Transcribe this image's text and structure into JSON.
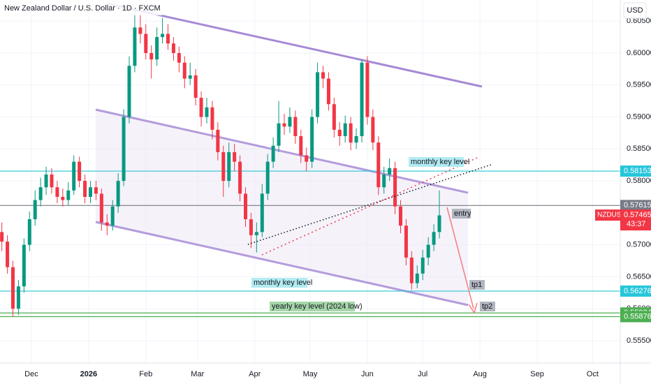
{
  "chart_data": {
    "type": "candlestick",
    "title": "New Zealand Dollar / U.S. Dollar · 1D · FXCM",
    "currency": "USD",
    "symbol": "NZDUSD",
    "countdown": "43:37",
    "up_color": "#089981",
    "down_color": "#f23645",
    "xlim": [
      -17,
      319
    ],
    "ylim": [
      0.5515,
      0.6083
    ],
    "xticks": [
      {
        "value": 0,
        "label": "Dec"
      },
      {
        "value": 31,
        "label": "2026"
      },
      {
        "value": 62,
        "label": "Feb"
      },
      {
        "value": 90,
        "label": "Mar"
      },
      {
        "value": 121,
        "label": "Apr"
      },
      {
        "value": 151,
        "label": "May"
      },
      {
        "value": 182,
        "label": "Jun"
      },
      {
        "value": 212,
        "label": "Jul"
      },
      {
        "value": 243,
        "label": "Aug"
      },
      {
        "value": 274,
        "label": "Sep"
      },
      {
        "value": 304,
        "label": "Oct"
      }
    ],
    "yticks": [
      {
        "value": 0.605,
        "label": "0.60500"
      },
      {
        "value": 0.6,
        "label": "0.60000"
      },
      {
        "value": 0.595,
        "label": "0.59500"
      },
      {
        "value": 0.59,
        "label": "0.59000"
      },
      {
        "value": 0.585,
        "label": "0.58500"
      },
      {
        "value": 0.58,
        "label": "0.58000"
      },
      {
        "value": 0.57,
        "label": "0.57000"
      },
      {
        "value": 0.565,
        "label": "0.56500"
      },
      {
        "value": 0.56,
        "label": "0.56000"
      },
      {
        "value": 0.555,
        "label": "0.55500"
      }
    ],
    "levels": [
      {
        "value": 0.58153,
        "color": "#26c6da"
      },
      {
        "value": 0.57615,
        "color": "#787b86"
      },
      {
        "value": 0.56276,
        "color": "#26c6da"
      },
      {
        "value": 0.55934,
        "color": "#4caf50"
      },
      {
        "value": 0.55876,
        "color": "#4caf50"
      }
    ],
    "last_price": 0.57465,
    "annotations": [
      "monthly key level",
      "entry",
      "tp1",
      "tp2",
      "monthly key level",
      "yearly key level (2024 low)"
    ],
    "x": [
      -16,
      -13,
      -10,
      -7,
      -4,
      -1,
      2,
      5,
      8,
      11,
      14,
      17,
      20,
      23,
      26,
      29,
      32,
      35,
      38,
      41,
      44,
      47,
      50,
      53,
      56,
      59,
      62,
      65,
      68,
      71,
      74,
      77,
      80,
      83,
      86,
      89,
      92,
      95,
      98,
      101,
      104,
      107,
      110,
      113,
      116,
      119,
      122,
      125,
      128,
      131,
      134,
      137,
      140,
      143,
      146,
      149,
      152,
      155,
      158,
      161,
      164,
      167,
      170,
      173,
      176,
      179,
      182,
      185,
      188,
      191,
      194,
      197,
      200,
      203,
      206,
      209,
      212,
      215,
      218,
      221
    ],
    "open": [
      0.572,
      0.5705,
      0.5665,
      0.56,
      0.5635,
      0.57,
      0.574,
      0.577,
      0.579,
      0.581,
      0.579,
      0.5775,
      0.577,
      0.5785,
      0.583,
      0.58,
      0.5775,
      0.579,
      0.578,
      0.5735,
      0.573,
      0.576,
      0.58,
      0.59,
      0.598,
      0.604,
      0.603,
      0.6,
      0.599,
      0.6025,
      0.603,
      0.6015,
      0.6,
      0.5985,
      0.596,
      0.5965,
      0.593,
      0.59,
      0.5915,
      0.588,
      0.5845,
      0.58,
      0.5845,
      0.583,
      0.578,
      0.574,
      0.5715,
      0.572,
      0.578,
      0.583,
      0.5855,
      0.589,
      0.5885,
      0.59,
      0.587,
      0.584,
      0.583,
      0.59,
      0.597,
      0.596,
      0.592,
      0.588,
      0.587,
      0.589,
      0.586,
      0.587,
      0.5985,
      0.59,
      0.586,
      0.579,
      0.581,
      0.582,
      0.576,
      0.573,
      0.568,
      0.564,
      0.5655,
      0.568,
      0.57,
      0.572
    ],
    "high": [
      0.5735,
      0.5715,
      0.5675,
      0.5645,
      0.571,
      0.5752,
      0.5785,
      0.5805,
      0.5822,
      0.582,
      0.58,
      0.5788,
      0.5798,
      0.584,
      0.5838,
      0.581,
      0.58,
      0.58,
      0.5788,
      0.5748,
      0.577,
      0.5812,
      0.5912,
      0.5995,
      0.607,
      0.6062,
      0.6045,
      0.6012,
      0.604,
      0.6055,
      0.6045,
      0.6025,
      0.601,
      0.5995,
      0.5985,
      0.5975,
      0.594,
      0.593,
      0.5925,
      0.5892,
      0.5855,
      0.586,
      0.5858,
      0.584,
      0.579,
      0.575,
      0.5735,
      0.5795,
      0.5842,
      0.5868,
      0.5925,
      0.5905,
      0.5915,
      0.591,
      0.588,
      0.5852,
      0.5912,
      0.5985,
      0.598,
      0.597,
      0.593,
      0.5892,
      0.5902,
      0.59,
      0.5882,
      0.599,
      0.5995,
      0.5912,
      0.587,
      0.5822,
      0.5835,
      0.583,
      0.577,
      0.574,
      0.569,
      0.5668,
      0.5692,
      0.5712,
      0.5732,
      0.5785
    ],
    "low": [
      0.569,
      0.5655,
      0.5588,
      0.559,
      0.5625,
      0.569,
      0.573,
      0.576,
      0.5778,
      0.578,
      0.5765,
      0.576,
      0.5762,
      0.5778,
      0.579,
      0.5765,
      0.5765,
      0.577,
      0.5722,
      0.5715,
      0.5722,
      0.575,
      0.5792,
      0.589,
      0.597,
      0.6015,
      0.599,
      0.596,
      0.598,
      0.6015,
      0.6005,
      0.5988,
      0.597,
      0.5945,
      0.595,
      0.5918,
      0.5885,
      0.589,
      0.5865,
      0.5832,
      0.5775,
      0.579,
      0.5815,
      0.5768,
      0.5728,
      0.5695,
      0.5688,
      0.5712,
      0.577,
      0.582,
      0.5845,
      0.5872,
      0.5875,
      0.5858,
      0.5828,
      0.5815,
      0.582,
      0.589,
      0.5945,
      0.591,
      0.5868,
      0.5855,
      0.586,
      0.5848,
      0.585,
      0.586,
      0.5888,
      0.5848,
      0.5778,
      0.578,
      0.58,
      0.5748,
      0.5718,
      0.5668,
      0.563,
      0.5632,
      0.5645,
      0.5668,
      0.569,
      0.571
    ],
    "close": [
      0.5705,
      0.5665,
      0.56,
      0.5635,
      0.57,
      0.574,
      0.577,
      0.579,
      0.581,
      0.579,
      0.5775,
      0.577,
      0.5785,
      0.583,
      0.58,
      0.5775,
      0.579,
      0.578,
      0.5735,
      0.573,
      0.576,
      0.58,
      0.59,
      0.598,
      0.604,
      0.603,
      0.6,
      0.599,
      0.6025,
      0.603,
      0.6015,
      0.6,
      0.5985,
      0.596,
      0.5965,
      0.593,
      0.59,
      0.5915,
      0.588,
      0.5845,
      0.58,
      0.5845,
      0.583,
      0.578,
      0.574,
      0.5715,
      0.572,
      0.578,
      0.583,
      0.5855,
      0.589,
      0.5885,
      0.59,
      0.587,
      0.584,
      0.583,
      0.59,
      0.597,
      0.596,
      0.592,
      0.588,
      0.587,
      0.589,
      0.586,
      0.587,
      0.5985,
      0.59,
      0.586,
      0.579,
      0.581,
      0.582,
      0.576,
      0.573,
      0.568,
      0.564,
      0.5655,
      0.568,
      0.57,
      0.572,
      0.5746
    ]
  }
}
